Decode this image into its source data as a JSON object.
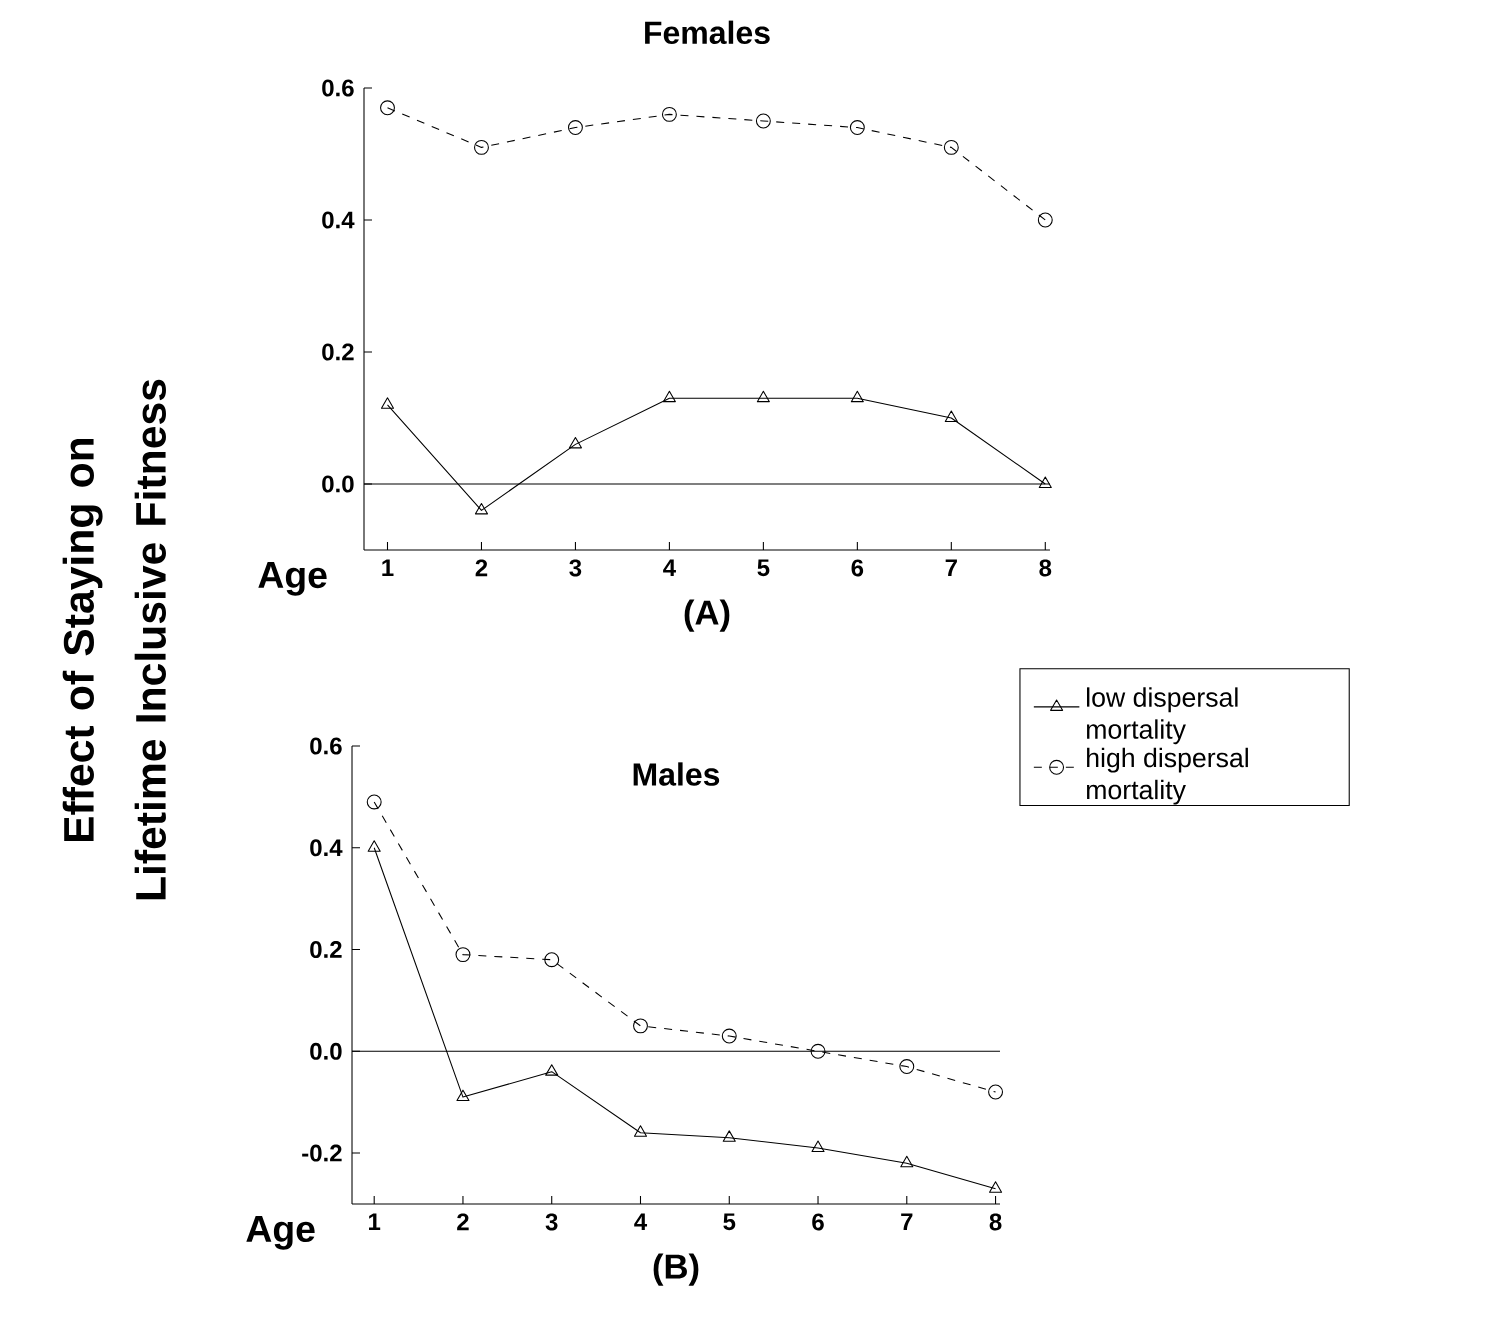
{
  "chart_data": [
    {
      "type": "line",
      "title": "Females",
      "xlabel": "Age",
      "ylabel": "Effect of Staying on Lifetime Inclusive Fitness",
      "x": [
        1,
        2,
        3,
        4,
        5,
        6,
        7,
        8
      ],
      "xlim": [
        0.75,
        8.05
      ],
      "xticks": [
        1,
        2,
        3,
        4,
        5,
        6,
        7,
        8
      ],
      "ylim": [
        -0.1,
        0.6
      ],
      "yticks": [
        {
          "value": 0,
          "label": "0.0"
        },
        0.2,
        0.4,
        0.6
      ],
      "series": [
        {
          "color": "#000000",
          "marker": "triangle",
          "line_style": "solid",
          "values": [
            0.12,
            -0.04,
            0.06,
            0.13,
            0.13,
            0.13,
            0.1,
            0.0
          ]
        },
        {
          "color": "#000000",
          "marker": "circle",
          "line_style": "dashed",
          "values": [
            0.57,
            0.51,
            0.54,
            0.56,
            0.55,
            0.54,
            0.51,
            0.4
          ]
        }
      ],
      "ref_lines": [
        {
          "axis": "y",
          "value": 0
        }
      ],
      "annotations": [
        "(A)"
      ]
    },
    {
      "type": "line",
      "title": "Males",
      "xlabel": "Age",
      "x": [
        1,
        2,
        3,
        4,
        5,
        6,
        7,
        8
      ],
      "xlim": [
        0.75,
        8.05
      ],
      "xticks": [
        1,
        2,
        3,
        4,
        5,
        6,
        7,
        8
      ],
      "ylim": [
        -0.3,
        0.6
      ],
      "yticks": [
        -0.2,
        {
          "value": 0,
          "label": "0.0"
        },
        0.2,
        0.4,
        0.6
      ],
      "series": [
        {
          "name": "low dispersal mortality",
          "color": "#000000",
          "marker": "triangle",
          "line_style": "solid",
          "values": [
            0.4,
            -0.09,
            -0.04,
            -0.16,
            -0.17,
            -0.19,
            -0.22,
            -0.27
          ]
        },
        {
          "name": "high dispersal mortality",
          "color": "#000000",
          "marker": "circle",
          "line_style": "dashed",
          "values": [
            0.49,
            0.19,
            0.18,
            0.05,
            0.03,
            0.0,
            -0.03,
            -0.08
          ]
        }
      ],
      "ref_lines": [
        {
          "axis": "y",
          "value": 0
        }
      ],
      "legend": "right",
      "annotations": [
        "(B)"
      ]
    }
  ]
}
